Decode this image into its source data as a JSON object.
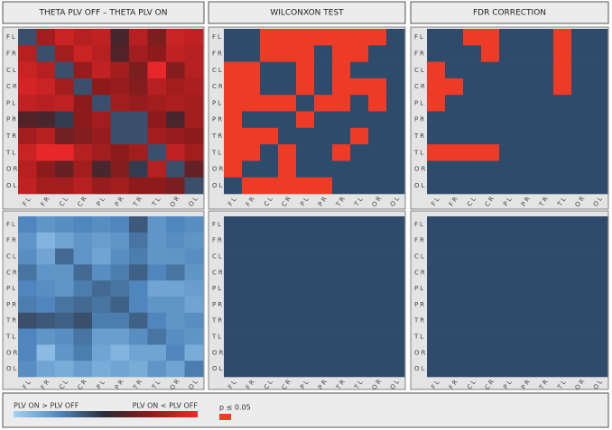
{
  "chart_data": [
    {
      "type": "heatmap",
      "title": "THETA PLV OFF – THETA PLV ON",
      "rows": [
        "FL",
        "FR",
        "CL",
        "CR",
        "PL",
        "PR",
        "TR",
        "TL",
        "OR",
        "OL"
      ],
      "columns": [
        "FL",
        "FR",
        "CL",
        "CR",
        "PL",
        "PR",
        "TR",
        "TL",
        "OR",
        "OL"
      ],
      "vlim": [
        -1,
        1
      ],
      "values": [
        [
          -0.2,
          0.6,
          0.8,
          0.7,
          0.75,
          0.15,
          0.7,
          0.4,
          0.8,
          0.75
        ],
        [
          0.7,
          -0.2,
          0.6,
          0.8,
          0.7,
          0.2,
          0.6,
          0.5,
          0.75,
          0.7
        ],
        [
          0.8,
          0.7,
          -0.2,
          0.55,
          0.75,
          0.6,
          0.4,
          0.95,
          0.45,
          0.7
        ],
        [
          0.85,
          0.8,
          0.6,
          -0.2,
          0.5,
          0.55,
          0.45,
          0.7,
          0.6,
          0.65
        ],
        [
          0.75,
          0.7,
          0.75,
          0.5,
          -0.2,
          0.6,
          0.55,
          0.6,
          0.65,
          0.6
        ],
        [
          0.2,
          0.15,
          -0.1,
          0.5,
          0.6,
          -0.2,
          -0.2,
          0.5,
          0.15,
          0.6
        ],
        [
          0.6,
          0.7,
          0.35,
          0.45,
          0.55,
          -0.2,
          -0.2,
          0.6,
          0.55,
          0.5
        ],
        [
          0.8,
          0.95,
          0.95,
          0.7,
          0.6,
          0.5,
          0.6,
          -0.2,
          0.75,
          0.6
        ],
        [
          0.7,
          0.5,
          0.3,
          0.6,
          0.15,
          0.45,
          -0.1,
          0.7,
          -0.2,
          0.3
        ],
        [
          0.75,
          0.6,
          0.6,
          0.7,
          0.55,
          0.6,
          0.5,
          0.5,
          0.4,
          -0.2
        ]
      ]
    },
    {
      "type": "significance",
      "title": "WILCONXON TEST",
      "rows": [
        "FL",
        "FR",
        "CL",
        "CR",
        "PL",
        "PR",
        "TR",
        "TL",
        "OR",
        "OL"
      ],
      "columns": [
        "FL",
        "FR",
        "CL",
        "CR",
        "PL",
        "PR",
        "TR",
        "TL",
        "OR",
        "OL"
      ],
      "values": [
        [
          0,
          0,
          1,
          1,
          1,
          1,
          1,
          1,
          1,
          0
        ],
        [
          0,
          0,
          1,
          1,
          1,
          0,
          1,
          1,
          0,
          0
        ],
        [
          1,
          1,
          0,
          0,
          1,
          0,
          1,
          0,
          0,
          0
        ],
        [
          1,
          1,
          0,
          0,
          1,
          0,
          1,
          1,
          1,
          0
        ],
        [
          1,
          1,
          1,
          1,
          0,
          1,
          1,
          0,
          1,
          0
        ],
        [
          1,
          0,
          0,
          0,
          1,
          0,
          0,
          0,
          0,
          0
        ],
        [
          1,
          1,
          1,
          0,
          0,
          0,
          0,
          1,
          0,
          0
        ],
        [
          1,
          1,
          0,
          1,
          0,
          0,
          1,
          0,
          0,
          0
        ],
        [
          1,
          0,
          0,
          1,
          0,
          0,
          0,
          0,
          0,
          0
        ],
        [
          0,
          1,
          1,
          1,
          1,
          1,
          0,
          0,
          0,
          0
        ]
      ]
    },
    {
      "type": "significance",
      "title": "FDR CORRECTION",
      "rows": [
        "FL",
        "FR",
        "CL",
        "CR",
        "PL",
        "PR",
        "TR",
        "TL",
        "OR",
        "OL"
      ],
      "columns": [
        "FL",
        "FR",
        "CL",
        "CR",
        "PL",
        "PR",
        "TR",
        "TL",
        "OR",
        "OL"
      ],
      "values": [
        [
          0,
          0,
          1,
          1,
          0,
          0,
          0,
          1,
          0,
          0
        ],
        [
          0,
          0,
          0,
          1,
          0,
          0,
          0,
          1,
          0,
          0
        ],
        [
          1,
          0,
          0,
          0,
          0,
          0,
          0,
          1,
          0,
          0
        ],
        [
          1,
          1,
          0,
          0,
          0,
          0,
          0,
          1,
          0,
          0
        ],
        [
          1,
          0,
          0,
          0,
          0,
          0,
          0,
          0,
          0,
          0
        ],
        [
          0,
          0,
          0,
          0,
          0,
          0,
          0,
          0,
          0,
          0
        ],
        [
          0,
          0,
          0,
          0,
          0,
          0,
          0,
          0,
          0,
          0
        ],
        [
          1,
          1,
          1,
          1,
          0,
          0,
          0,
          0,
          0,
          0
        ],
        [
          0,
          0,
          0,
          0,
          0,
          0,
          0,
          0,
          0,
          0
        ],
        [
          0,
          0,
          0,
          0,
          0,
          0,
          0,
          0,
          0,
          0
        ]
      ]
    },
    {
      "type": "heatmap",
      "rows": [
        "FL",
        "FR",
        "CL",
        "CR",
        "PL",
        "PR",
        "TR",
        "TL",
        "OR",
        "OL"
      ],
      "columns": [
        "FL",
        "FR",
        "CL",
        "CR",
        "PL",
        "PR",
        "TR",
        "TL",
        "OR",
        "OL"
      ],
      "vlim": [
        -1,
        1
      ],
      "values": [
        [
          -0.5,
          -0.6,
          -0.55,
          -0.5,
          -0.55,
          -0.5,
          -0.25,
          -0.6,
          -0.5,
          -0.55
        ],
        [
          -0.6,
          -0.8,
          -0.7,
          -0.6,
          -0.65,
          -0.6,
          -0.4,
          -0.6,
          -0.55,
          -0.6
        ],
        [
          -0.55,
          -0.7,
          -0.35,
          -0.6,
          -0.7,
          -0.55,
          -0.45,
          -0.6,
          -0.6,
          -0.55
        ],
        [
          -0.4,
          -0.6,
          -0.6,
          -0.35,
          -0.55,
          -0.45,
          -0.3,
          -0.5,
          -0.4,
          -0.6
        ],
        [
          -0.5,
          -0.55,
          -0.6,
          -0.45,
          -0.35,
          -0.4,
          -0.5,
          -0.7,
          -0.7,
          -0.65
        ],
        [
          -0.45,
          -0.5,
          -0.4,
          -0.35,
          -0.4,
          -0.3,
          -0.5,
          -0.6,
          -0.6,
          -0.7
        ],
        [
          -0.2,
          -0.25,
          -0.3,
          -0.2,
          -0.45,
          -0.45,
          -0.3,
          -0.5,
          -0.6,
          -0.55
        ],
        [
          -0.5,
          -0.6,
          -0.55,
          -0.4,
          -0.65,
          -0.65,
          -0.55,
          -0.4,
          -0.55,
          -0.6
        ],
        [
          -0.5,
          -0.85,
          -0.6,
          -0.45,
          -0.7,
          -0.8,
          -0.7,
          -0.7,
          -0.5,
          -0.75
        ],
        [
          -0.55,
          -0.7,
          -0.75,
          -0.65,
          -0.75,
          -0.7,
          -0.75,
          -0.6,
          -0.7,
          -0.45
        ]
      ]
    },
    {
      "type": "significance",
      "rows": [
        "FL",
        "FR",
        "CL",
        "CR",
        "PL",
        "PR",
        "TR",
        "TL",
        "OR",
        "OL"
      ],
      "columns": [
        "FL",
        "FR",
        "CL",
        "CR",
        "PL",
        "PR",
        "TR",
        "TL",
        "OR",
        "OL"
      ],
      "values": [
        [
          0,
          0,
          0,
          0,
          0,
          0,
          0,
          0,
          0,
          0
        ],
        [
          0,
          0,
          0,
          0,
          0,
          0,
          0,
          0,
          0,
          0
        ],
        [
          0,
          0,
          0,
          0,
          0,
          0,
          0,
          0,
          0,
          0
        ],
        [
          0,
          0,
          0,
          0,
          0,
          0,
          0,
          0,
          0,
          0
        ],
        [
          0,
          0,
          0,
          0,
          0,
          0,
          0,
          0,
          0,
          0
        ],
        [
          0,
          0,
          0,
          0,
          0,
          0,
          0,
          0,
          0,
          0
        ],
        [
          0,
          0,
          0,
          0,
          0,
          0,
          0,
          0,
          0,
          0
        ],
        [
          0,
          0,
          0,
          0,
          0,
          0,
          0,
          0,
          0,
          0
        ],
        [
          0,
          0,
          0,
          0,
          0,
          0,
          0,
          0,
          0,
          0
        ],
        [
          0,
          0,
          0,
          0,
          0,
          0,
          0,
          0,
          0,
          0
        ]
      ]
    },
    {
      "type": "significance",
      "rows": [
        "FL",
        "FR",
        "CL",
        "CR",
        "PL",
        "PR",
        "TR",
        "TL",
        "OR",
        "OL"
      ],
      "columns": [
        "FL",
        "FR",
        "CL",
        "CR",
        "PL",
        "PR",
        "TR",
        "TL",
        "OR",
        "OL"
      ],
      "values": [
        [
          0,
          0,
          0,
          0,
          0,
          0,
          0,
          0,
          0,
          0
        ],
        [
          0,
          0,
          0,
          0,
          0,
          0,
          0,
          0,
          0,
          0
        ],
        [
          0,
          0,
          0,
          0,
          0,
          0,
          0,
          0,
          0,
          0
        ],
        [
          0,
          0,
          0,
          0,
          0,
          0,
          0,
          0,
          0,
          0
        ],
        [
          0,
          0,
          0,
          0,
          0,
          0,
          0,
          0,
          0,
          0
        ],
        [
          0,
          0,
          0,
          0,
          0,
          0,
          0,
          0,
          0,
          0
        ],
        [
          0,
          0,
          0,
          0,
          0,
          0,
          0,
          0,
          0,
          0
        ],
        [
          0,
          0,
          0,
          0,
          0,
          0,
          0,
          0,
          0,
          0
        ],
        [
          0,
          0,
          0,
          0,
          0,
          0,
          0,
          0,
          0,
          0
        ],
        [
          0,
          0,
          0,
          0,
          0,
          0,
          0,
          0,
          0,
          0
        ]
      ]
    }
  ],
  "colorscale": [
    [
      -1,
      "#a4d2f2"
    ],
    [
      -0.5,
      "#4f86bd"
    ],
    [
      0,
      "#2a2a34"
    ],
    [
      0.5,
      "#8e1b1b"
    ],
    [
      1,
      "#f2282a"
    ]
  ],
  "significance_colors": [
    "#2f4b6c",
    "#ee3b25"
  ],
  "legend": {
    "left": "PLV ON > PLV OFF",
    "right": "PLV ON < PLV OFF",
    "significance": "p ≤ 0.05"
  }
}
